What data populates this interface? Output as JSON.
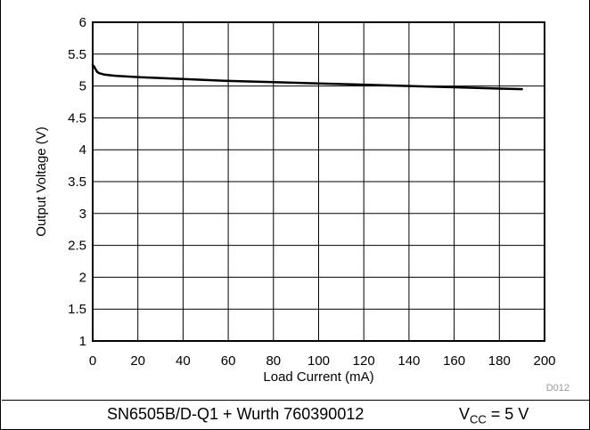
{
  "chart_data": {
    "type": "line",
    "xlabel": "Load Current (mA)",
    "ylabel": "Output Voltage (V)",
    "xlim": [
      0,
      200
    ],
    "ylim": [
      1,
      6
    ],
    "xticks": [
      "0",
      "20",
      "40",
      "60",
      "80",
      "100",
      "120",
      "140",
      "160",
      "180",
      "200"
    ],
    "yticks": [
      "1",
      "1.5",
      "2",
      "2.5",
      "3",
      "3.5",
      "4",
      "4.5",
      "5",
      "5.5",
      "6"
    ],
    "grid": true,
    "legend": "none",
    "line_color": "#000000",
    "series": [
      {
        "x": [
          0,
          0.5,
          1,
          1.5,
          2,
          3,
          5,
          10,
          20,
          40,
          60,
          80,
          100,
          120,
          140,
          160,
          180,
          190
        ],
        "y": [
          5.33,
          5.31,
          5.28,
          5.25,
          5.22,
          5.2,
          5.18,
          5.16,
          5.14,
          5.11,
          5.08,
          5.06,
          5.04,
          5.02,
          5.0,
          4.98,
          4.96,
          4.95
        ]
      }
    ],
    "figure_code": "D012"
  },
  "caption": {
    "device": "SN6505B/D-Q1 + Wurth 760390012",
    "vcc_symbol": "V",
    "vcc_subscript": "CC",
    "vcc_value": " = 5 V"
  }
}
